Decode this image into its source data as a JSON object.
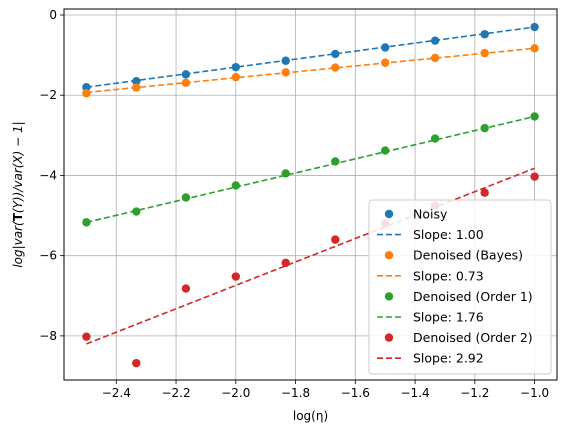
{
  "chart_data": {
    "type": "scatter",
    "xlabel": "log(η)",
    "ylabel": "log|var(T(Y))/var(X) − 1|",
    "xlim": [
      -2.575,
      -0.925
    ],
    "ylim": [
      -9.1,
      0.15
    ],
    "xticks": [
      -2.4,
      -2.2,
      -2.0,
      -1.8,
      -1.6,
      -1.4,
      -1.2,
      -1.0
    ],
    "xtick_labels": [
      "−2.4",
      "−2.2",
      "−2.0",
      "−1.8",
      "−1.6",
      "−1.4",
      "−1.2",
      "−1.0"
    ],
    "yticks": [
      -8,
      -6,
      -4,
      -2,
      0
    ],
    "ytick_labels": [
      "−8",
      "−6",
      "−4",
      "−2",
      "0"
    ],
    "grid": true,
    "legend_position": "lower-right",
    "x": [
      -2.5,
      -2.333,
      -2.167,
      -2.0,
      -1.833,
      -1.667,
      -1.5,
      -1.333,
      -1.167,
      -1.0
    ],
    "series": [
      {
        "name": "Noisy",
        "fit_label": "Slope: 1.00",
        "color": "#1f77b4",
        "points": [
          -1.8,
          -1.65,
          -1.48,
          -1.3,
          -1.14,
          -0.97,
          -0.81,
          -0.64,
          -0.48,
          -0.3
        ],
        "fit": [
          -1.8,
          -0.3
        ]
      },
      {
        "name": "Denoised (Bayes)",
        "fit_label": "Slope: 0.73",
        "color": "#ff7f0e",
        "points": [
          -1.95,
          -1.81,
          -1.69,
          -1.55,
          -1.43,
          -1.31,
          -1.19,
          -1.07,
          -0.95,
          -0.83
        ],
        "fit": [
          -1.93,
          -0.83
        ]
      },
      {
        "name": "Denoised (Order 1)",
        "fit_label": "Slope: 1.76",
        "color": "#2ca02c",
        "points": [
          -5.17,
          -4.9,
          -4.55,
          -4.25,
          -3.95,
          -3.65,
          -3.38,
          -3.08,
          -2.82,
          -2.53
        ],
        "fit": [
          -5.17,
          -2.53
        ]
      },
      {
        "name": "Denoised (Order 2)",
        "fit_label": "Slope: 2.92",
        "color": "#d62728",
        "points": [
          -8.02,
          -8.68,
          -6.82,
          -6.52,
          -6.18,
          -5.6,
          -5.2,
          -4.75,
          -4.43,
          -4.03
        ],
        "fit": [
          -8.2,
          -3.82
        ]
      }
    ]
  }
}
